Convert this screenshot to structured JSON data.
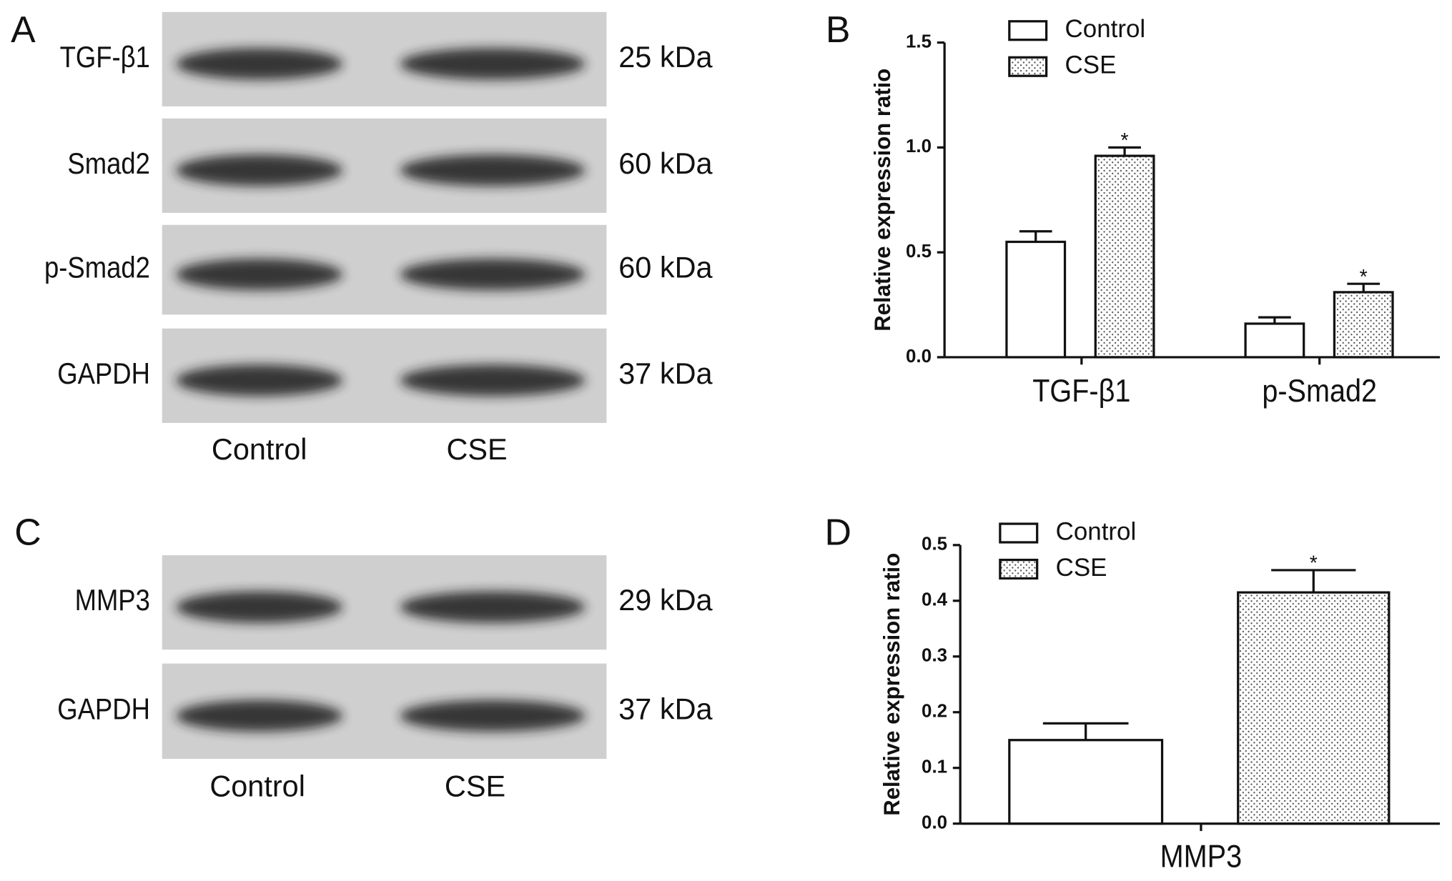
{
  "blots": [
    {
      "label": "A",
      "rows": [
        {
          "protein": "TGF-β1",
          "size": "25 kDa"
        },
        {
          "protein": "Smad2",
          "size": "60 kDa"
        },
        {
          "protein": "p-Smad2",
          "size": "60 kDa"
        },
        {
          "protein": "GAPDH",
          "size": "37 kDa"
        }
      ],
      "lanes": [
        "Control",
        "CSE"
      ]
    },
    {
      "label": "C",
      "rows": [
        {
          "protein": "MMP3",
          "size": "29 kDa"
        },
        {
          "protein": "GAPDH",
          "size": "37 kDa"
        }
      ],
      "lanes": [
        "Control",
        "CSE"
      ]
    }
  ],
  "chart_data": [
    {
      "type": "bar",
      "panel": "B",
      "ylabel": "Relative expression ratio",
      "categories": [
        "TGF-β1",
        "p-Smad2"
      ],
      "series": [
        {
          "name": "Control",
          "fill": "white",
          "values": [
            0.55,
            0.16
          ],
          "errors": [
            0.05,
            0.03
          ]
        },
        {
          "name": "CSE",
          "fill": "dots",
          "values": [
            0.96,
            0.31
          ],
          "errors": [
            0.04,
            0.04
          ],
          "markers": [
            "*",
            "*"
          ]
        }
      ],
      "ylim": [
        0,
        1.5
      ],
      "yticks": [
        {
          "value": 0,
          "label": "0.0"
        },
        {
          "value": 0.5,
          "label": "0.5"
        },
        {
          "value": 1,
          "label": "1.0"
        },
        {
          "value": 1.5,
          "label": "1.5"
        }
      ]
    },
    {
      "type": "bar",
      "panel": "D",
      "ylabel": "Relative expression ratio",
      "categories": [
        "MMP3"
      ],
      "series": [
        {
          "name": "Control",
          "fill": "white",
          "values": [
            0.15
          ],
          "errors": [
            0.03
          ]
        },
        {
          "name": "CSE",
          "fill": "dots",
          "values": [
            0.415
          ],
          "errors": [
            0.04
          ],
          "markers": [
            "*"
          ]
        }
      ],
      "ylim": [
        0,
        0.5
      ],
      "yticks": [
        {
          "value": 0,
          "label": "0.0"
        },
        {
          "value": 0.1,
          "label": "0.1"
        },
        {
          "value": 0.2,
          "label": "0.2"
        },
        {
          "value": 0.3,
          "label": "0.3"
        },
        {
          "value": 0.4,
          "label": "0.4"
        },
        {
          "value": 0.5,
          "label": "0.5"
        }
      ]
    }
  ]
}
